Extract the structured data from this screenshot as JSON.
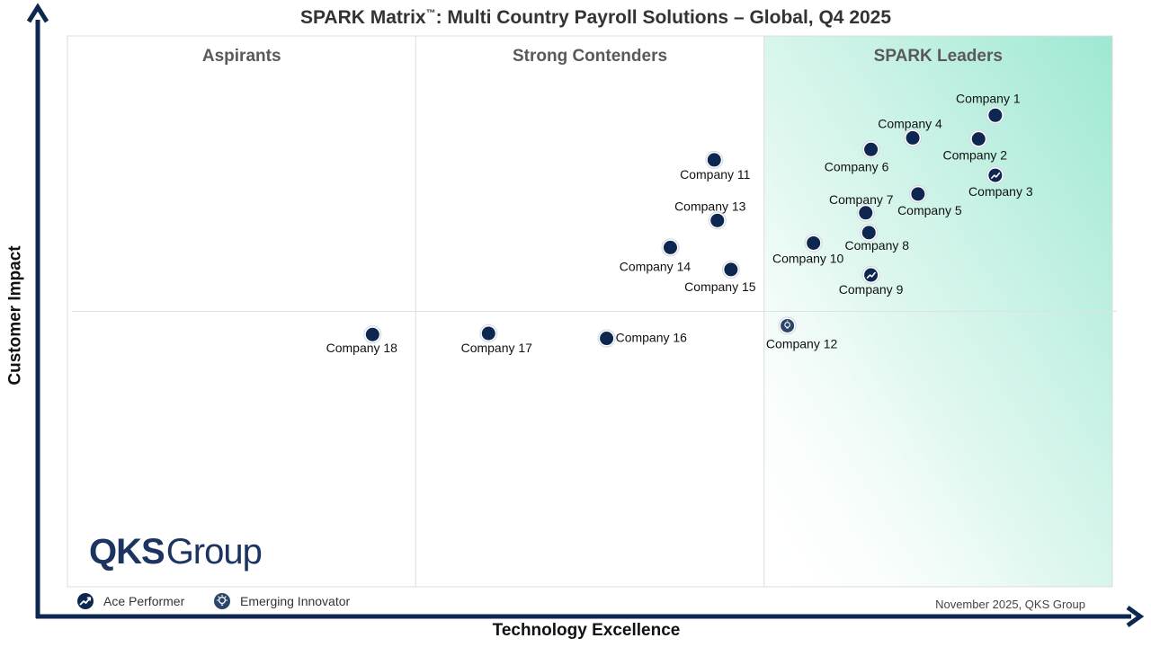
{
  "chart_data": {
    "type": "scatter",
    "title_main": "SPARK Matrix",
    "title_tm": "™",
    "title_rest": ": Multi Country Payroll Solutions – Global, Q4 2025",
    "xlabel": "Technology Excellence",
    "ylabel": "Customer Impact",
    "xlim": [
      0,
      100
    ],
    "ylim": [
      0,
      100
    ],
    "grid": false,
    "quadrants": [
      "Aspirants",
      "Strong Contenders",
      "SPARK Leaders"
    ],
    "series": [
      {
        "points": [
          {
            "label": "Company 1",
            "x": 88.8,
            "y": 85.6,
            "marker": "standard"
          },
          {
            "label": "Company 2",
            "x": 87.2,
            "y": 81.3,
            "marker": "standard"
          },
          {
            "label": "Company 3",
            "x": 88.8,
            "y": 74.7,
            "marker": "ace"
          },
          {
            "label": "Company 4",
            "x": 80.9,
            "y": 81.5,
            "marker": "standard"
          },
          {
            "label": "Company 5",
            "x": 81.4,
            "y": 71.3,
            "marker": "standard"
          },
          {
            "label": "Company 6",
            "x": 76.9,
            "y": 79.4,
            "marker": "standard"
          },
          {
            "label": "Company 7",
            "x": 76.4,
            "y": 67.9,
            "marker": "standard"
          },
          {
            "label": "Company 8",
            "x": 76.7,
            "y": 64.3,
            "marker": "standard"
          },
          {
            "label": "Company 9",
            "x": 76.9,
            "y": 56.6,
            "marker": "ace"
          },
          {
            "label": "Company 10",
            "x": 71.4,
            "y": 62.4,
            "marker": "standard"
          },
          {
            "label": "Company 11",
            "x": 61.9,
            "y": 77.5,
            "marker": "standard"
          },
          {
            "label": "Company 12",
            "x": 68.9,
            "y": 47.4,
            "marker": "emerging"
          },
          {
            "label": "Company 13",
            "x": 62.2,
            "y": 66.5,
            "marker": "standard"
          },
          {
            "label": "Company 14",
            "x": 57.7,
            "y": 61.6,
            "marker": "standard"
          },
          {
            "label": "Company 15",
            "x": 63.5,
            "y": 57.6,
            "marker": "standard"
          },
          {
            "label": "Company 16",
            "x": 51.6,
            "y": 45.1,
            "marker": "standard"
          },
          {
            "label": "Company 17",
            "x": 40.3,
            "y": 46.0,
            "marker": "standard"
          },
          {
            "label": "Company 18",
            "x": 29.2,
            "y": 45.8,
            "marker": "standard"
          }
        ]
      }
    ],
    "legend": [
      {
        "label": "Ace Performer",
        "marker": "ace"
      },
      {
        "label": "Emerging Innovator",
        "marker": "emerging"
      }
    ],
    "legend_placement": "bottom-left"
  },
  "branding": {
    "logo_bold": "QKS",
    "logo_light": "Group",
    "date_note": "November 2025, QKS Group"
  },
  "colors": {
    "marker": "#0d2750",
    "emerging_marker": "#2b4668",
    "leaders_shade": "#9ee8d3",
    "axis": "#0d2750",
    "quadrant_title": "#595959",
    "logo": "#1b3560"
  }
}
